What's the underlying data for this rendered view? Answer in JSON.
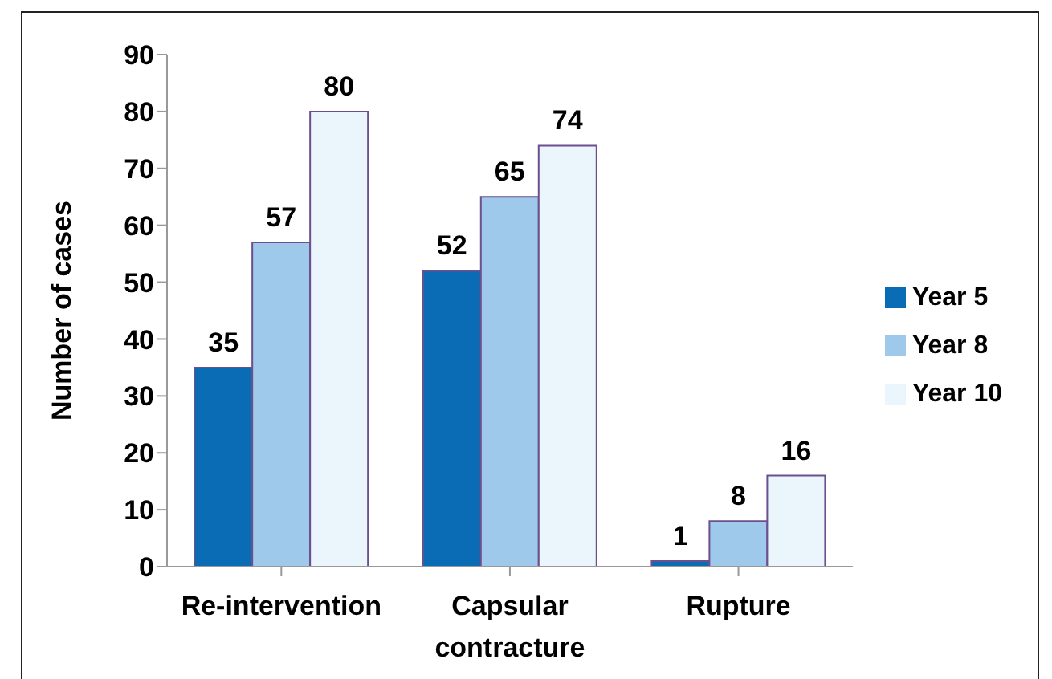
{
  "chart_data": {
    "type": "bar",
    "ylabel": "Number of cases",
    "categories": [
      "Re-intervention",
      "Capsular contracture",
      "Rupture"
    ],
    "series": [
      {
        "name": "Year 5",
        "color": "#0a6cb4",
        "values": [
          35,
          52,
          1
        ]
      },
      {
        "name": "Year 8",
        "color": "#9ec9ea",
        "values": [
          57,
          65,
          8
        ]
      },
      {
        "name": "Year 10",
        "color": "#eaf5fc",
        "values": [
          80,
          74,
          16
        ]
      }
    ],
    "ylim": [
      0,
      90
    ],
    "yticks": [
      0,
      10,
      20,
      30,
      40,
      50,
      60,
      70,
      80,
      90
    ],
    "grid": false,
    "legend": "right",
    "data_labels": true
  }
}
